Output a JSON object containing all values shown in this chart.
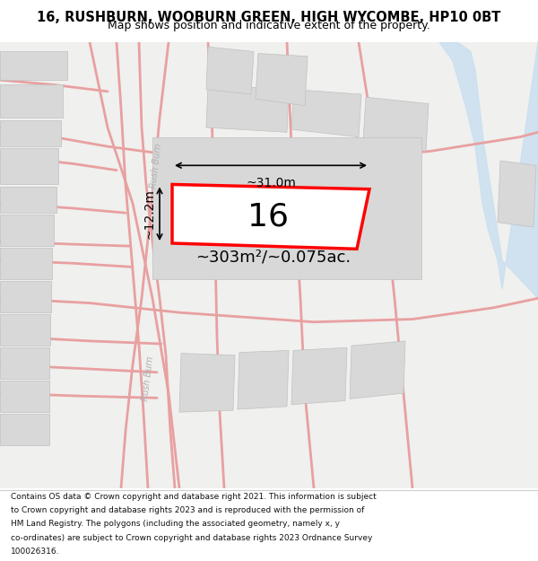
{
  "title_line1": "16, RUSHBURN, WOOBURN GREEN, HIGH WYCOMBE, HP10 0BT",
  "title_line2": "Map shows position and indicative extent of the property.",
  "footer_lines": [
    "Contains OS data © Crown copyright and database right 2021. This information is subject",
    "to Crown copyright and database rights 2023 and is reproduced with the permission of",
    "HM Land Registry. The polygons (including the associated geometry, namely x, y",
    "co-ordinates) are subject to Crown copyright and database rights 2023 Ordnance Survey",
    "100026316."
  ],
  "area_label": "~303m²/~0.075ac.",
  "plot_number": "16",
  "width_label": "~31.0m",
  "height_label": "~12.2m",
  "plot_color": "#ff0000",
  "background_color": "#ffffff",
  "map_bg_color": "#f0f0ee",
  "river_color": "#c8dff0",
  "road_color": "#e8a0a0",
  "block_color": "#d8d8d8",
  "block_edge": "#c0c0c0"
}
